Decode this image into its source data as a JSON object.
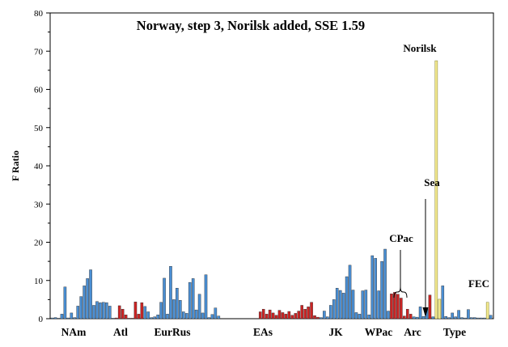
{
  "chart_data": {
    "type": "bar",
    "title": "Norway, step 3, Norilsk added, SSE 1.59",
    "xlabel": "",
    "ylabel": "F Ratio",
    "ylim": [
      0,
      80
    ],
    "yticks": [
      0,
      10,
      20,
      30,
      40,
      50,
      60,
      70,
      80
    ],
    "grid": false,
    "colors": {
      "blue": "#4a8fd4",
      "red": "#cc2424",
      "yellow": "#f0e68c"
    },
    "bars": [
      {
        "c": "b",
        "v": 0.2
      },
      {
        "c": "b",
        "v": 0.3
      },
      {
        "c": "b",
        "v": 0.1
      },
      {
        "c": "b",
        "v": 1.2
      },
      {
        "c": "b",
        "v": 8.3
      },
      {
        "c": "b",
        "v": 0.2
      },
      {
        "c": "b",
        "v": 1.5
      },
      {
        "c": "b",
        "v": 0.3
      },
      {
        "c": "b",
        "v": 3.3
      },
      {
        "c": "b",
        "v": 5.8
      },
      {
        "c": "b",
        "v": 8.6
      },
      {
        "c": "b",
        "v": 10.5
      },
      {
        "c": "b",
        "v": 12.8
      },
      {
        "c": "b",
        "v": 3.5
      },
      {
        "c": "b",
        "v": 4.5
      },
      {
        "c": "b",
        "v": 4.2
      },
      {
        "c": "b",
        "v": 4.3
      },
      {
        "c": "b",
        "v": 4.2
      },
      {
        "c": "b",
        "v": 3.3
      },
      {
        "c": "b",
        "v": 0.1
      },
      {
        "c": "r",
        "v": 0.2
      },
      {
        "c": "r",
        "v": 3.4
      },
      {
        "c": "r",
        "v": 2.5
      },
      {
        "c": "r",
        "v": 1.0
      },
      {
        "c": "r",
        "v": 0.1
      },
      {
        "c": "r",
        "v": 0.1
      },
      {
        "c": "r",
        "v": 4.4
      },
      {
        "c": "r",
        "v": 1.2
      },
      {
        "c": "r",
        "v": 4.2
      },
      {
        "c": "b",
        "v": 3.2
      },
      {
        "c": "b",
        "v": 1.8
      },
      {
        "c": "b",
        "v": 0.3
      },
      {
        "c": "b",
        "v": 0.5
      },
      {
        "c": "b",
        "v": 1.0
      },
      {
        "c": "b",
        "v": 4.3
      },
      {
        "c": "b",
        "v": 10.6
      },
      {
        "c": "b",
        "v": 1.2
      },
      {
        "c": "b",
        "v": 13.7
      },
      {
        "c": "b",
        "v": 5.0
      },
      {
        "c": "b",
        "v": 8.0
      },
      {
        "c": "b",
        "v": 4.8
      },
      {
        "c": "b",
        "v": 1.8
      },
      {
        "c": "b",
        "v": 1.4
      },
      {
        "c": "b",
        "v": 9.5
      },
      {
        "c": "b",
        "v": 10.5
      },
      {
        "c": "b",
        "v": 2.3
      },
      {
        "c": "b",
        "v": 6.4
      },
      {
        "c": "b",
        "v": 1.5
      },
      {
        "c": "b",
        "v": 11.5
      },
      {
        "c": "b",
        "v": 0.3
      },
      {
        "c": "b",
        "v": 1.1
      },
      {
        "c": "b",
        "v": 2.8
      },
      {
        "c": "b",
        "v": 0.7
      },
      {
        "c": "b",
        "v": 0
      },
      {
        "c": "b",
        "v": 0
      },
      {
        "c": "b",
        "v": 0
      },
      {
        "c": "b",
        "v": 0
      },
      {
        "c": "b",
        "v": 0
      },
      {
        "c": "b",
        "v": 0
      },
      {
        "c": "b",
        "v": 0
      },
      {
        "c": "b",
        "v": 0
      },
      {
        "c": "b",
        "v": 0
      },
      {
        "c": "b",
        "v": 0
      },
      {
        "c": "b",
        "v": 0
      },
      {
        "c": "b",
        "v": 0
      },
      {
        "c": "r",
        "v": 1.8
      },
      {
        "c": "r",
        "v": 2.5
      },
      {
        "c": "r",
        "v": 1.2
      },
      {
        "c": "r",
        "v": 2.3
      },
      {
        "c": "r",
        "v": 1.5
      },
      {
        "c": "r",
        "v": 0.9
      },
      {
        "c": "r",
        "v": 2.2
      },
      {
        "c": "r",
        "v": 1.6
      },
      {
        "c": "r",
        "v": 1.2
      },
      {
        "c": "r",
        "v": 1.9
      },
      {
        "c": "r",
        "v": 0.9
      },
      {
        "c": "r",
        "v": 1.4
      },
      {
        "c": "r",
        "v": 2.0
      },
      {
        "c": "r",
        "v": 3.5
      },
      {
        "c": "r",
        "v": 2.5
      },
      {
        "c": "r",
        "v": 3.1
      },
      {
        "c": "r",
        "v": 4.3
      },
      {
        "c": "r",
        "v": 0.8
      },
      {
        "c": "r",
        "v": 0.4
      },
      {
        "c": "b",
        "v": 0.3
      },
      {
        "c": "b",
        "v": 2.0
      },
      {
        "c": "b",
        "v": 0.5
      },
      {
        "c": "b",
        "v": 3.5
      },
      {
        "c": "b",
        "v": 5.0
      },
      {
        "c": "b",
        "v": 8.0
      },
      {
        "c": "b",
        "v": 7.4
      },
      {
        "c": "b",
        "v": 6.7
      },
      {
        "c": "b",
        "v": 11.0
      },
      {
        "c": "b",
        "v": 14.0
      },
      {
        "c": "b",
        "v": 7.5
      },
      {
        "c": "b",
        "v": 1.6
      },
      {
        "c": "b",
        "v": 1.2
      },
      {
        "c": "b",
        "v": 7.3
      },
      {
        "c": "b",
        "v": 7.5
      },
      {
        "c": "b",
        "v": 1.0
      },
      {
        "c": "b",
        "v": 16.5
      },
      {
        "c": "b",
        "v": 15.8
      },
      {
        "c": "b",
        "v": 7.3
      },
      {
        "c": "b",
        "v": 15.0
      },
      {
        "c": "b",
        "v": 18.2
      },
      {
        "c": "b",
        "v": 2.0
      },
      {
        "c": "r",
        "v": 6.5
      },
      {
        "c": "r",
        "v": 6.9
      },
      {
        "c": "r",
        "v": 6.4
      },
      {
        "c": "r",
        "v": 5.4
      },
      {
        "c": "r",
        "v": 0.7
      },
      {
        "c": "r",
        "v": 2.5
      },
      {
        "c": "r",
        "v": 1.2
      },
      {
        "c": "b",
        "v": 0.5
      },
      {
        "c": "b",
        "v": 0.4
      },
      {
        "c": "b",
        "v": 3.1
      },
      {
        "c": "b",
        "v": 0.6
      },
      {
        "c": "b",
        "v": 2.6
      },
      {
        "c": "r",
        "v": 6.2
      },
      {
        "c": "b",
        "v": 0.5
      },
      {
        "c": "y",
        "v": 67.5
      },
      {
        "c": "y",
        "v": 5.1
      },
      {
        "c": "b",
        "v": 8.6
      },
      {
        "c": "b",
        "v": 0.6
      },
      {
        "c": "b",
        "v": 0.3
      },
      {
        "c": "b",
        "v": 1.5
      },
      {
        "c": "b",
        "v": 0.5
      },
      {
        "c": "b",
        "v": 2.2
      },
      {
        "c": "b",
        "v": 0.3
      },
      {
        "c": "b",
        "v": 0.2
      },
      {
        "c": "b",
        "v": 2.4
      },
      {
        "c": "b",
        "v": 0.3
      },
      {
        "c": "b",
        "v": 0.3
      },
      {
        "c": "b",
        "v": 0.2
      },
      {
        "c": "b",
        "v": 0.2
      },
      {
        "c": "b",
        "v": 0.2
      },
      {
        "c": "y",
        "v": 4.3
      },
      {
        "c": "b",
        "v": 0.9
      }
    ],
    "group_labels": [
      "NAm",
      "Atl",
      "EurRus",
      "EAs",
      "JK",
      "WPac",
      "Arc",
      "Type"
    ],
    "annotations": [
      "Norilsk",
      "Sea",
      "CPac",
      "FEC"
    ]
  }
}
